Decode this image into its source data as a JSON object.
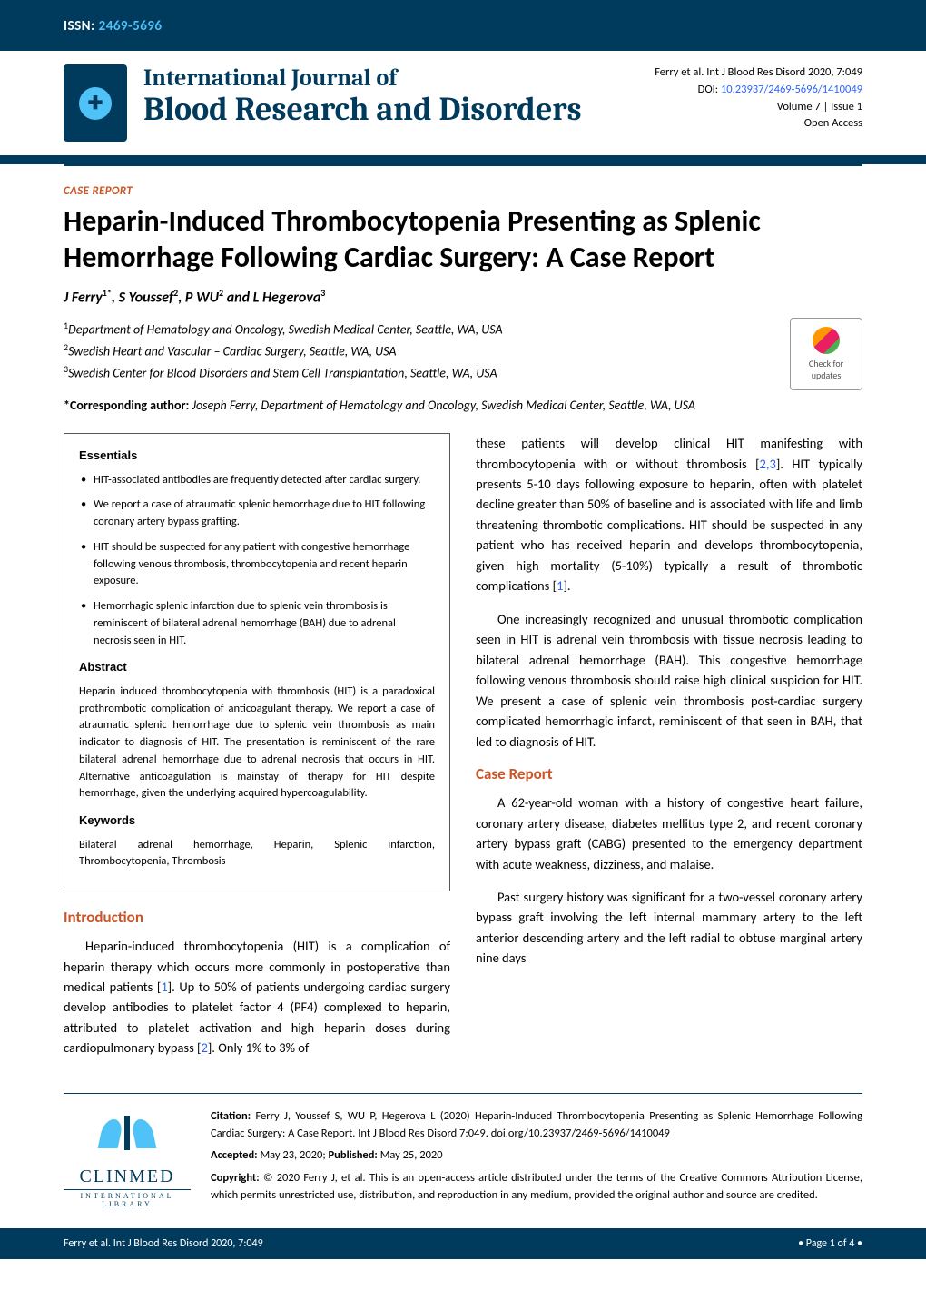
{
  "issn": {
    "label": "ISSN:",
    "value": "2469-5696"
  },
  "header_citation": {
    "line1": "Ferry et al. Int J Blood Res Disord 2020, 7:049",
    "doi_label": "DOI: ",
    "doi": "10.23937/2469-5696/1410049",
    "volume": "Volume 7 | Issue 1",
    "access": "Open Access"
  },
  "journal": {
    "top_line": "International Journal of",
    "main_line": "Blood Research and Disorders"
  },
  "article": {
    "type_label": "CASE REPORT",
    "title": "Heparin-Induced Thrombocytopenia Presenting as Splenic Hemorrhage Following Cardiac Surgery: A Case Report",
    "authors_html": "J Ferry<sup>1*</sup>, S Youssef<sup>2</sup>, P WU<sup>2</sup> and L Hegerova<sup>3</sup>",
    "affiliations": [
      "<sup>1</sup>Department of Hematology and Oncology, Swedish Medical Center, Seattle, WA, USA",
      "<sup>2</sup>Swedish Heart and Vascular – Cardiac Surgery, Seattle, WA, USA",
      "<sup>3</sup>Swedish Center for Blood Disorders and Stem Cell Transplantation, Seattle, WA, USA"
    ],
    "corresponding_label": "*Corresponding author:",
    "corresponding": "Joseph Ferry, Department of Hematology and Oncology, Swedish Medical Center, Seattle, WA, USA"
  },
  "check_updates": {
    "line1": "Check for",
    "line2": "updates"
  },
  "abstract_box": {
    "essentials_head": "Essentials",
    "essentials": [
      "HIT-associated antibodies are frequently detected after cardiac surgery.",
      "We report a case of atraumatic splenic hemorrhage due to HIT following coronary artery bypass grafting.",
      "HIT should be suspected for any patient with congestive hemorrhage following venous thrombosis, thrombocytopenia and recent heparin exposure.",
      "Hemorrhagic splenic infarction due to splenic vein thrombosis is reminiscent of bilateral adrenal hemorrhage (BAH) due to adrenal necrosis seen in HIT."
    ],
    "abstract_head": "Abstract",
    "abstract_text": "Heparin induced thrombocytopenia with thrombosis (HIT) is a paradoxical prothrombotic complication of anticoagulant therapy. We report a case of atraumatic splenic hemorrhage due to splenic vein thrombosis as main indicator to diagnosis of HIT. The presentation is reminiscent of the rare bilateral adrenal hemorrhage due to adrenal necrosis that occurs in HIT. Alternative anticoagulation is mainstay of therapy for HIT despite hemorrhage, given the underlying acquired hypercoagulability.",
    "keywords_head": "Keywords",
    "keywords_text": "Bilateral adrenal hemorrhage, Heparin, Splenic infarction, Thrombocytopenia, Thrombosis"
  },
  "sections": {
    "intro_head": "Introduction",
    "intro_p1": "Heparin-induced thrombocytopenia (HIT) is a complication of heparin therapy which occurs more commonly in postoperative than medical patients [1]. Up to 50% of patients undergoing cardiac surgery develop antibodies to platelet factor 4 (PF4) complexed to heparin, attributed to platelet activation and high heparin doses during cardiopulmonary bypass [2]. Only 1% to 3% of",
    "right_p1": "these patients will develop clinical HIT manifesting with thrombocytopenia with or without thrombosis [2,3]. HIT typically presents 5-10 days following exposure to heparin, often with platelet decline greater than 50% of baseline and is associated with life and limb threatening thrombotic complications. HIT should be suspected in any patient who has received heparin and develops thrombocytopenia, given high mortality (5-10%) typically a result of thrombotic complications [1].",
    "right_p2": "One increasingly recognized and unusual thrombotic complication seen in HIT is adrenal vein thrombosis with tissue necrosis leading to bilateral adrenal hemorrhage (BAH). This congestive hemorrhage following venous thrombosis should raise high clinical suspicion for HIT. We present a case of splenic vein thrombosis post-cardiac surgery complicated hemorrhagic infarct, reminiscent of that seen in BAH, that led to diagnosis of HIT.",
    "case_head": "Case Report",
    "case_p1": "A 62-year-old woman with a history of congestive heart failure, coronary artery disease, diabetes mellitus type 2, and recent coronary artery bypass graft (CABG) presented to the emergency department with acute weakness, dizziness, and malaise.",
    "case_p2": "Past surgery history was significant for a two-vessel coronary artery bypass graft involving the left internal mammary artery to the left anterior descending artery and the left radial to obtuse marginal artery nine days"
  },
  "footer": {
    "citation_label": "Citation:",
    "citation_text": "Ferry J, Youssef S, WU P, Hegerova L (2020) Heparin-Induced Thrombocytopenia Presenting as Splenic Hemorrhage Following Cardiac Surgery: A Case Report. Int J Blood Res Disord 7:049. doi.org/10.23937/2469-5696/1410049",
    "accepted_label": "Accepted:",
    "accepted_val": "May 23, 2020;",
    "published_label": "Published:",
    "published_val": "May 25, 2020",
    "copyright_label": "Copyright:",
    "copyright_text": "© 2020 Ferry J, et al. This is an open-access article distributed under the terms of the Creative Commons Attribution License, which permits unrestricted use, distribution, and reproduction in any medium, provided the original author and source are credited.",
    "logo_main": "CLINMED",
    "logo_sub": "INTERNATIONAL LIBRARY"
  },
  "footer_bar": {
    "left": "Ferry et al. Int J Blood Res Disord 2020, 7:049",
    "right": "• Page 1 of 4 •"
  },
  "colors": {
    "brand_dark": "#003a5d",
    "brand_light": "#4fc3f7",
    "accent_orange": "#ca5628",
    "link_blue": "#2962ff"
  }
}
